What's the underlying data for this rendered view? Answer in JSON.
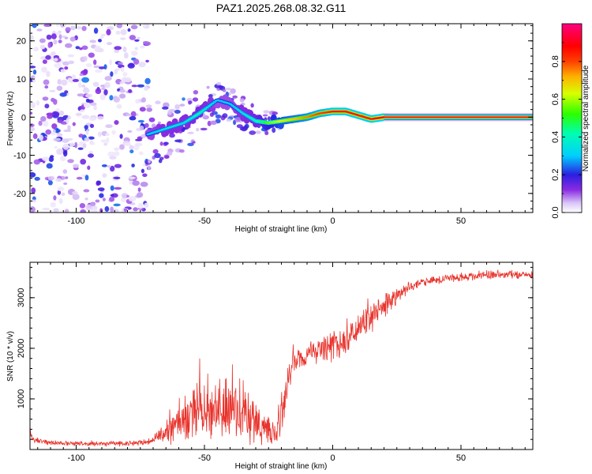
{
  "figure": {
    "title": "PAZ1.2025.268.08.32.G11"
  },
  "chart_data": [
    {
      "type": "heatmap",
      "title": "PAZ1.2025.268.08.32.G11",
      "xlabel": "Height of straight line (km)",
      "ylabel": "Frequency (Hz)",
      "xlim": [
        -118,
        78
      ],
      "ylim": [
        -25,
        24.5
      ],
      "xticks": [
        -100,
        -50,
        0,
        50
      ],
      "xtick_labels": [
        "-100",
        "-50",
        "0",
        "50"
      ],
      "yticks": [
        20,
        10,
        0,
        -10,
        -20
      ],
      "ytick_labels": [
        "20",
        "10",
        "0",
        "-10",
        "-20"
      ],
      "colorbar": {
        "label": "Normalized spectral amplitude",
        "range": [
          0,
          1
        ],
        "ticks": [
          0.0,
          0.2,
          0.4,
          0.6,
          0.8
        ],
        "tick_labels": [
          "0.0",
          "0.2",
          "0.4",
          "0.6",
          "0.8"
        ],
        "colormap": "rainbow (white-violet-blue-cyan-green-yellow-red-magenta)"
      },
      "ridge": {
        "description": "Main spectral line centered near 0 Hz",
        "x": [
          -72,
          -65,
          -58,
          -52,
          -45,
          -40,
          -35,
          -30,
          -25,
          -20,
          -15,
          -10,
          -5,
          0,
          5,
          10,
          15,
          20,
          78
        ],
        "freq": [
          -4.5,
          -3,
          -1.5,
          1,
          4.5,
          3.5,
          1,
          -1,
          -1.5,
          -1,
          -0.5,
          0,
          1,
          1.5,
          1.5,
          0.5,
          -0.5,
          0,
          0
        ],
        "peak_amplitude": [
          0.3,
          0.35,
          0.35,
          0.4,
          0.3,
          0.3,
          0.35,
          0.4,
          0.55,
          0.65,
          0.7,
          0.75,
          0.8,
          0.85,
          0.85,
          0.85,
          0.85,
          0.9,
          0.9
        ]
      },
      "noise_region": {
        "description": "Scattered low-amplitude noise",
        "x_range": [
          -118,
          -72
        ],
        "freq_range": [
          -25,
          24.5
        ],
        "amplitude_range": [
          0.02,
          0.25
        ]
      }
    },
    {
      "type": "line",
      "xlabel": "Height of straight line (km)",
      "ylabel": "SNR (10 * v/v)",
      "xlim": [
        -118,
        78
      ],
      "ylim": [
        0,
        3700
      ],
      "xticks": [
        -100,
        -50,
        0,
        50
      ],
      "xtick_labels": [
        "-100",
        "-50",
        "0",
        "50"
      ],
      "yticks": [
        1000,
        2000,
        3000
      ],
      "ytick_labels": [
        "1000",
        "2000",
        "3000"
      ],
      "color": "#e8332c",
      "series": [
        {
          "name": "SNR",
          "x": [
            -118,
            -117,
            -110,
            -100,
            -90,
            -80,
            -72,
            -66,
            -60,
            -55,
            -50,
            -45,
            -40,
            -35,
            -30,
            -25,
            -22,
            -19,
            -16,
            -12,
            -8,
            -4,
            0,
            4,
            8,
            12,
            16,
            20,
            25,
            30,
            35,
            40,
            50,
            60,
            70,
            78
          ],
          "mean": [
            420,
            180,
            130,
            120,
            110,
            120,
            140,
            300,
            500,
            650,
            750,
            850,
            800,
            700,
            550,
            350,
            250,
            900,
            1700,
            1800,
            1900,
            2000,
            2050,
            2150,
            2250,
            2450,
            2600,
            2850,
            3050,
            3200,
            3300,
            3350,
            3400,
            3450,
            3450,
            3450
          ],
          "spread": [
            250,
            60,
            60,
            60,
            60,
            60,
            70,
            250,
            450,
            700,
            700,
            700,
            800,
            800,
            500,
            300,
            250,
            600,
            300,
            250,
            250,
            350,
            400,
            350,
            300,
            350,
            450,
            300,
            200,
            120,
            100,
            100,
            100,
            100,
            100,
            100
          ]
        }
      ]
    }
  ]
}
